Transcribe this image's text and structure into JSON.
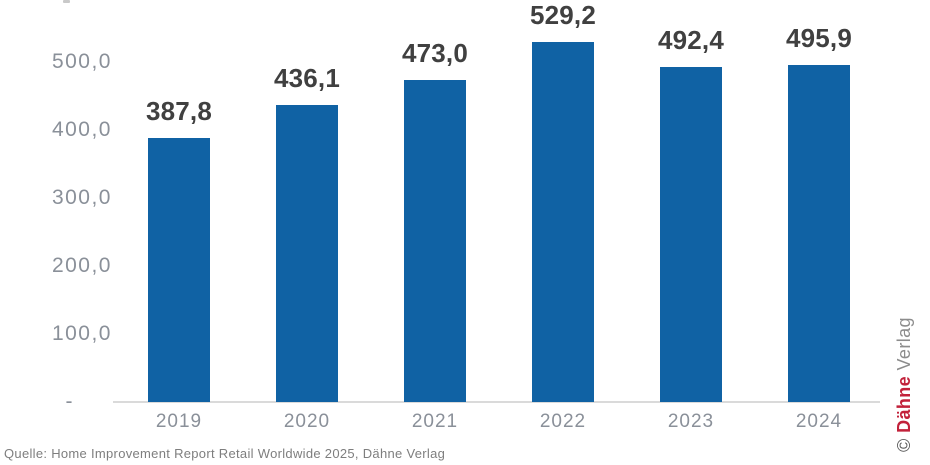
{
  "chart_data": {
    "type": "bar",
    "title": "",
    "xlabel": "",
    "ylabel": "",
    "categories": [
      "2019",
      "2020",
      "2021",
      "2022",
      "2023",
      "2024"
    ],
    "values": [
      387.8,
      436.1,
      473.0,
      529.2,
      492.4,
      495.9
    ],
    "value_labels": [
      "387,8",
      "436,1",
      "473,0",
      "529,2",
      "492,4",
      "495,9"
    ],
    "yticks": [
      {
        "value": 500,
        "label": "500,0"
      },
      {
        "value": 400,
        "label": "400,0"
      },
      {
        "value": 300,
        "label": "300,0"
      },
      {
        "value": 200,
        "label": "200,0"
      },
      {
        "value": 100,
        "label": "100,0"
      },
      {
        "value": 0,
        "label": "-"
      }
    ],
    "ylim": [
      0,
      600
    ],
    "grid": false,
    "legend": false,
    "bar_color": "#1062A4",
    "value_label_color": "#404040",
    "axis_text_color": "#8A9099",
    "axis_line_color": "#DADADA"
  },
  "source_note": "Quelle: Home Improvement Report Retail Worldwide 2025, Dähne Verlag",
  "watermark": {
    "copyright": "©",
    "brand": "Dähne",
    "suffix": "Verlag",
    "brand_color": "#C2213A"
  }
}
